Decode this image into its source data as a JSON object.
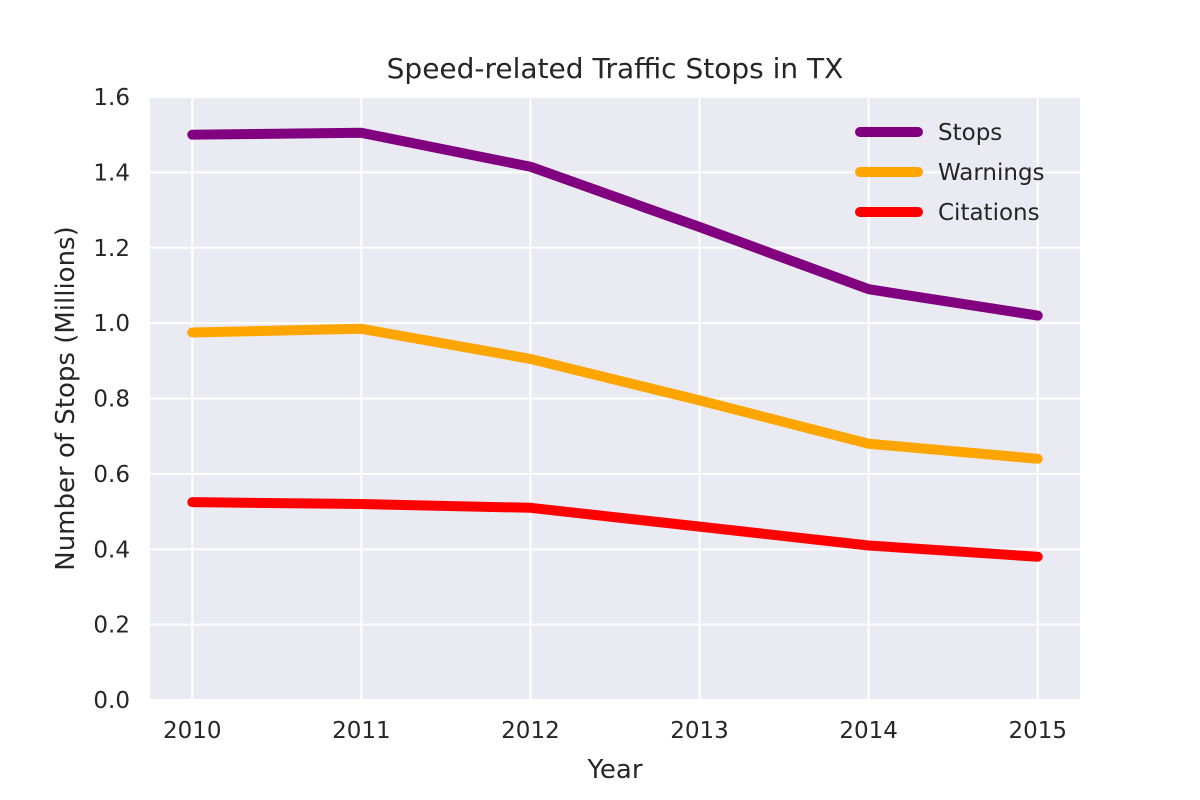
{
  "chart_data": {
    "type": "line",
    "title": "Speed-related Traffic Stops in TX",
    "xlabel": "Year",
    "ylabel": "Number of Stops (Millions)",
    "x": [
      2010,
      2011,
      2012,
      2013,
      2014,
      2015
    ],
    "xlim": [
      2009.75,
      2015.25
    ],
    "ylim": [
      0.0,
      1.6
    ],
    "yticks": [
      0.0,
      0.2,
      0.4,
      0.6,
      0.8,
      1.0,
      1.2,
      1.4,
      1.6
    ],
    "ytick_labels": [
      "0.0",
      "0.2",
      "0.4",
      "0.6",
      "0.8",
      "1.0",
      "1.2",
      "1.4",
      "1.6"
    ],
    "xtick_labels": [
      "2010",
      "2011",
      "2012",
      "2013",
      "2014",
      "2015"
    ],
    "grid": true,
    "background": "#eaeaf2",
    "legend_position": "top-right",
    "series": [
      {
        "name": "Stops",
        "color": "#800080",
        "values": [
          1.5,
          1.505,
          1.415,
          1.255,
          1.09,
          1.02
        ]
      },
      {
        "name": "Warnings",
        "color": "#ffa500",
        "values": [
          0.975,
          0.985,
          0.905,
          0.795,
          0.68,
          0.64
        ]
      },
      {
        "name": "Citations",
        "color": "#ff0000",
        "values": [
          0.525,
          0.52,
          0.51,
          0.46,
          0.41,
          0.38
        ]
      }
    ]
  }
}
